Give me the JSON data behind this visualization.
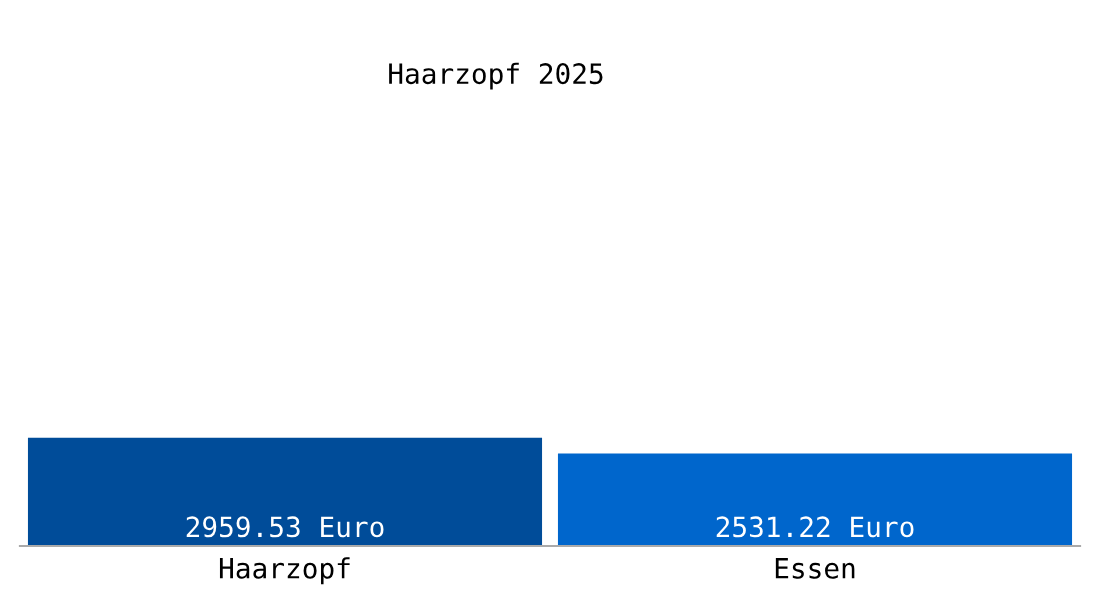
{
  "chart_data": {
    "type": "bar",
    "title": "Haarzopf 2025",
    "categories": [
      "Haarzopf",
      "Essen"
    ],
    "values": [
      2959.53,
      2531.22
    ],
    "colors": [
      "#004c99",
      "#0066cc"
    ],
    "value_labels": [
      "2959.53 Euro",
      "2531.22 Euro"
    ],
    "grid": false,
    "legend": false
  }
}
